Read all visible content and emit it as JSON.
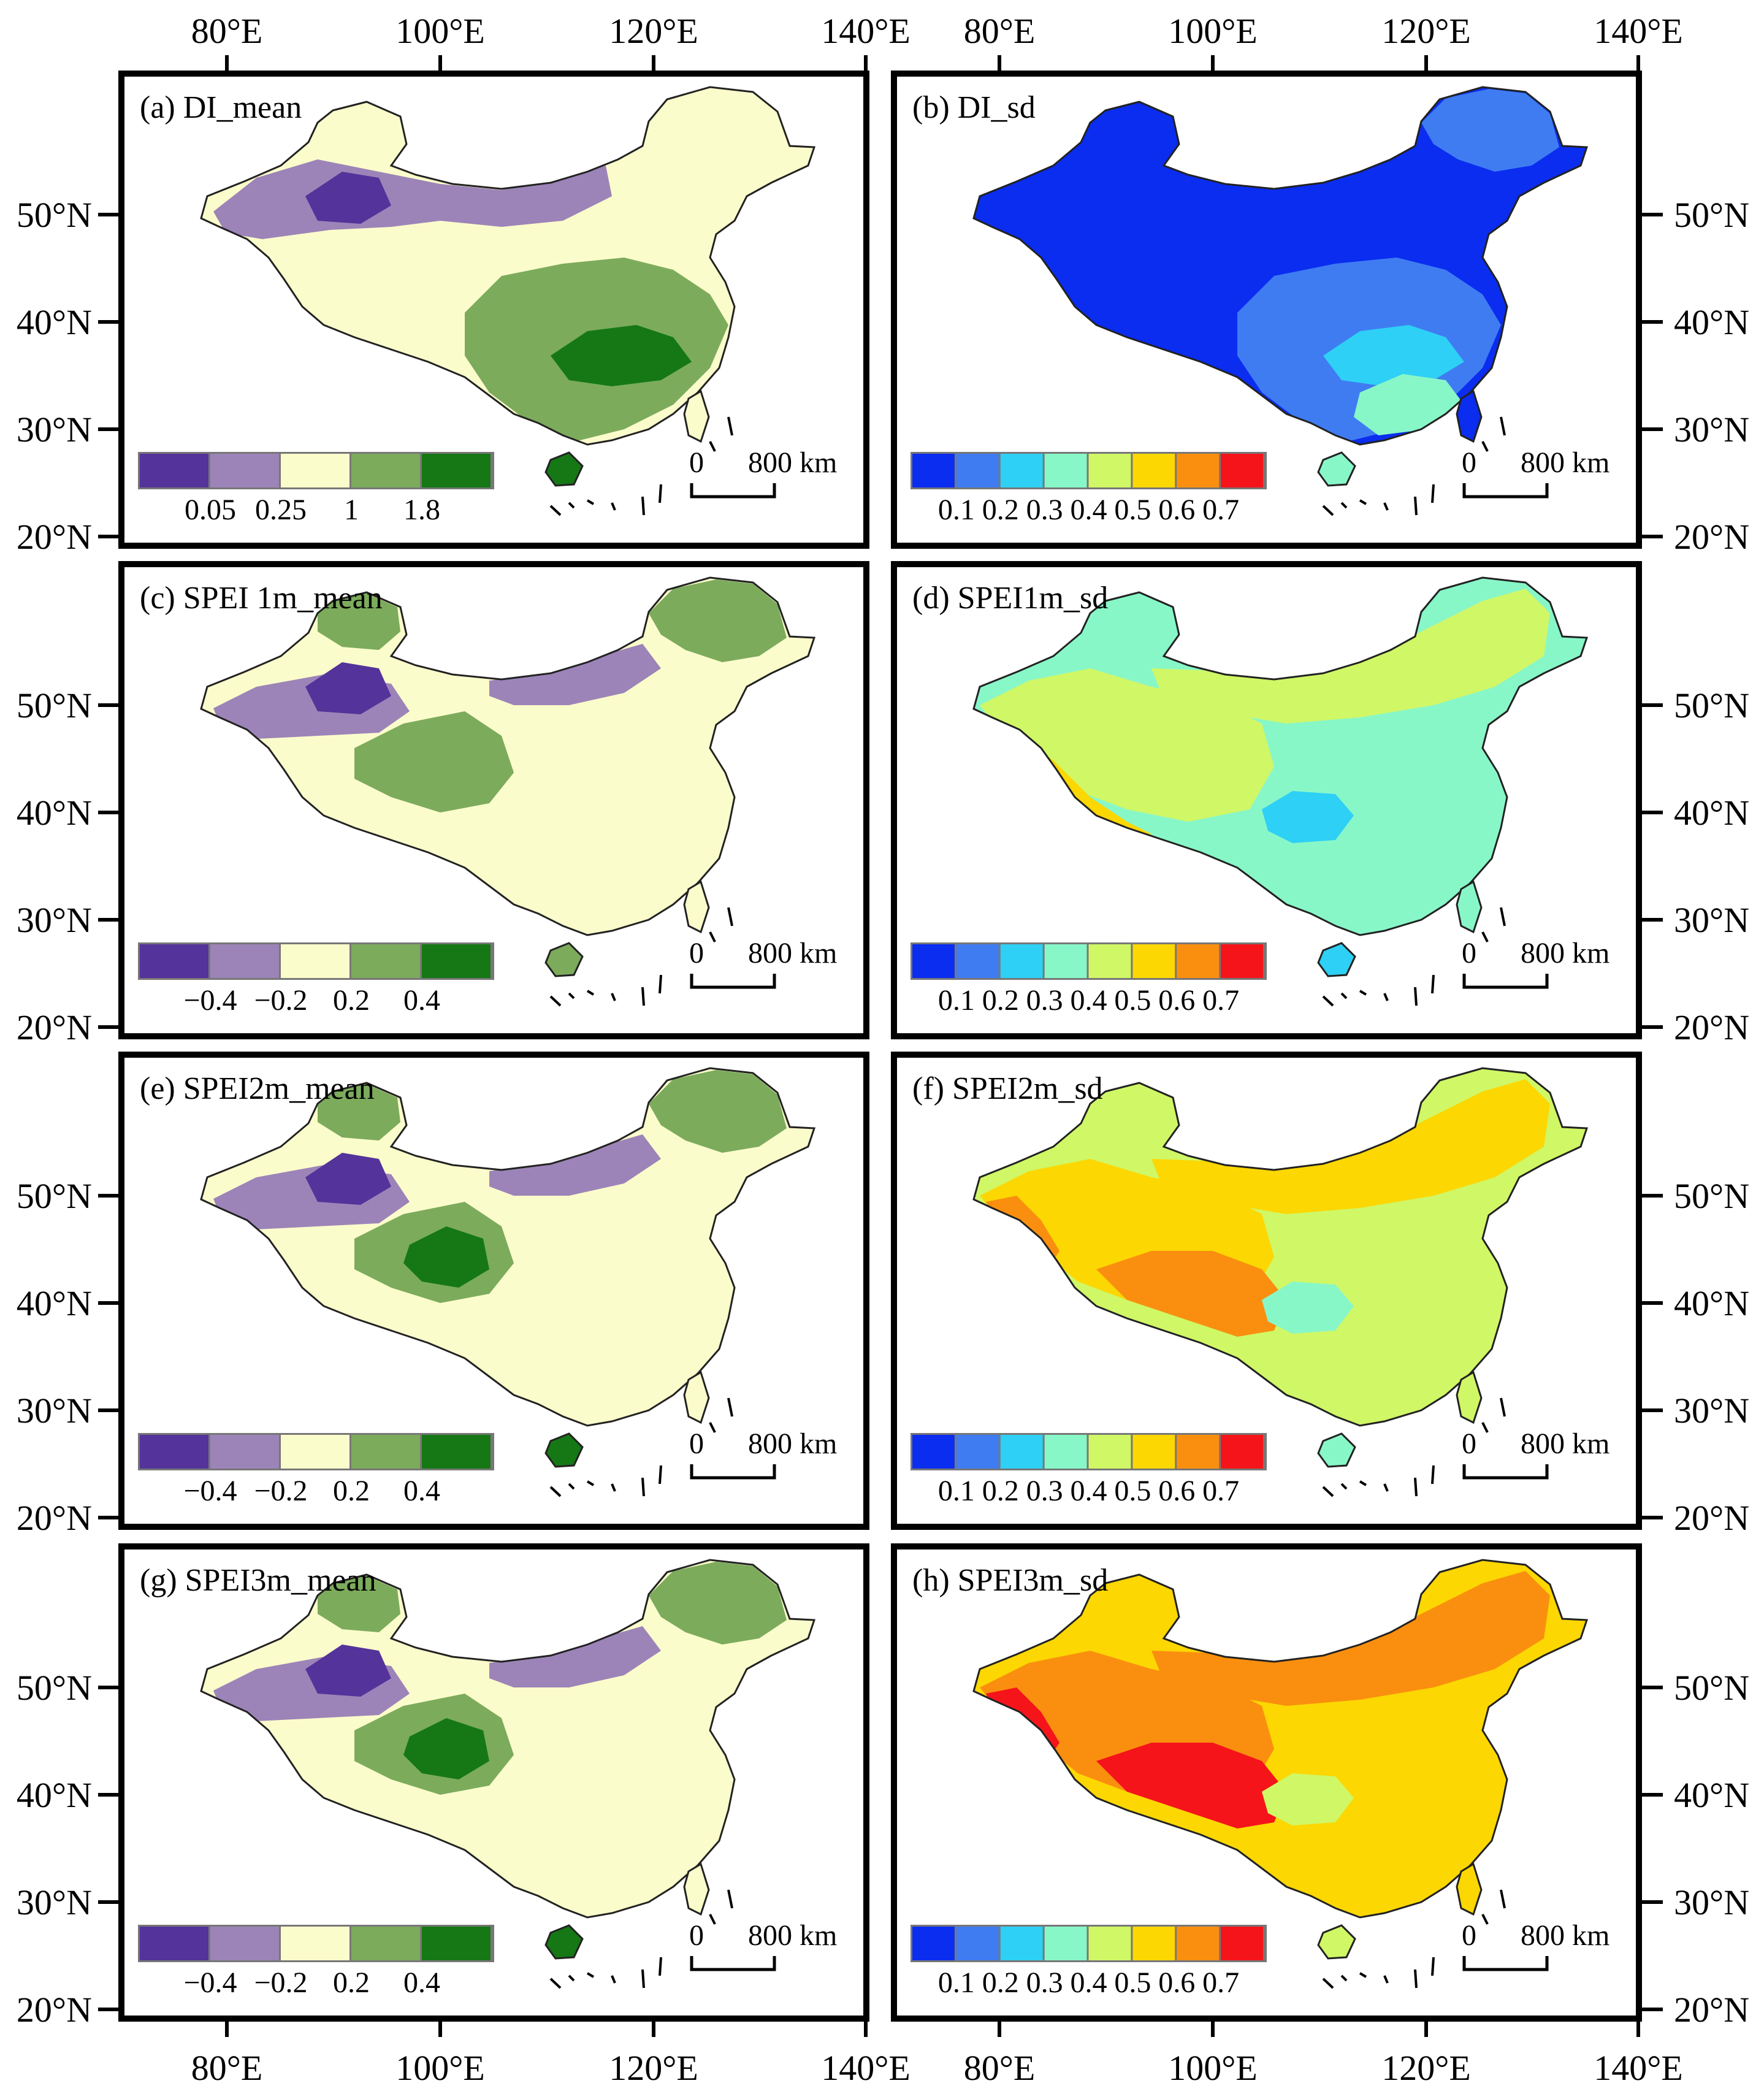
{
  "figure": {
    "top_longitudes": [
      "80°E",
      "100°E",
      "120°E",
      "140°E"
    ],
    "bottom_longitudes": [
      "80°E",
      "100°E",
      "120°E",
      "140°E"
    ],
    "latitudes": [
      "50°N",
      "40°N",
      "30°N",
      "20°N"
    ]
  },
  "scale_bar": {
    "zero": "0",
    "distance": "800 km"
  },
  "legends": {
    "di_mean": {
      "colors": [
        "#54339a",
        "#9c84b8",
        "#fbfccb",
        "#7cab5c",
        "#157815"
      ],
      "labels": [
        "0.05",
        "0.25",
        "1",
        "1.8"
      ]
    },
    "spei_mean": {
      "colors": [
        "#54339a",
        "#9c84b8",
        "#fbfccb",
        "#7cab5c",
        "#157815"
      ],
      "labels": [
        "−0.4",
        "−0.2",
        "0.2",
        "0.4"
      ]
    },
    "sd": {
      "colors": [
        "#0a2df0",
        "#3f7cf2",
        "#2ed0f5",
        "#88f7c8",
        "#d0f766",
        "#fcd702",
        "#fa8f0f",
        "#f5141a"
      ],
      "labels": [
        "0.1",
        "0.2",
        "0.3",
        "0.4",
        "0.5",
        "0.6",
        "0.7"
      ]
    }
  },
  "panels": [
    {
      "id": "a",
      "title": "(a) DI_mean",
      "legend": "di_mean",
      "base_color": "#fbfccb",
      "zones": [
        {
          "color": "#9c84b8",
          "region": "northwest drylands"
        },
        {
          "color": "#54339a",
          "region": "Tarim basin core"
        },
        {
          "color": "#7cab5c",
          "region": "south-east"
        },
        {
          "color": "#157815",
          "region": "south-east core"
        }
      ]
    },
    {
      "id": "b",
      "title": "(b) DI_sd",
      "legend": "sd",
      "base_color": "#0a2df0",
      "zones": [
        {
          "color": "#3f7cf2",
          "region": "north-east"
        },
        {
          "color": "#3f7cf2",
          "region": "south-east"
        },
        {
          "color": "#2ed0f5",
          "region": "south-east core"
        },
        {
          "color": "#88f7c8",
          "region": "south coast"
        }
      ]
    },
    {
      "id": "c",
      "title": "(c) SPEI 1m_mean",
      "legend": "spei_mean",
      "base_color": "#fbfccb",
      "zones": [
        {
          "color": "#7cab5c",
          "region": "north-east"
        },
        {
          "color": "#7cab5c",
          "region": "Altai"
        },
        {
          "color": "#9c84b8",
          "region": "Tarim basin"
        },
        {
          "color": "#54339a",
          "region": "Tarim basin core"
        },
        {
          "color": "#9c84b8",
          "region": "Inner Mongolia"
        },
        {
          "color": "#7cab5c",
          "region": "Qinghai"
        }
      ]
    },
    {
      "id": "d",
      "title": "(d) SPEI1m_sd",
      "legend": "sd",
      "base_color": "#88f7c8",
      "zones": [
        {
          "color": "#d0f766",
          "region": "west"
        },
        {
          "color": "#d0f766",
          "region": "north"
        },
        {
          "color": "#fcd702",
          "region": "south-west"
        },
        {
          "color": "#2ed0f5",
          "region": "Sichuan"
        }
      ]
    },
    {
      "id": "e",
      "title": "(e) SPEI2m_mean",
      "legend": "spei_mean",
      "base_color": "#fbfccb",
      "zones": [
        {
          "color": "#7cab5c",
          "region": "north-east"
        },
        {
          "color": "#7cab5c",
          "region": "Altai"
        },
        {
          "color": "#9c84b8",
          "region": "Tarim basin"
        },
        {
          "color": "#54339a",
          "region": "Tarim basin core"
        },
        {
          "color": "#9c84b8",
          "region": "Inner Mongolia"
        },
        {
          "color": "#7cab5c",
          "region": "Qinghai"
        },
        {
          "color": "#157815",
          "region": "Qinghai core"
        }
      ]
    },
    {
      "id": "f",
      "title": "(f) SPEI2m_sd",
      "legend": "sd",
      "base_color": "#d0f766",
      "zones": [
        {
          "color": "#fcd702",
          "region": "west"
        },
        {
          "color": "#fa8f0f",
          "region": "Kashgar"
        },
        {
          "color": "#fa8f0f",
          "region": "Tibet"
        },
        {
          "color": "#fcd702",
          "region": "north"
        },
        {
          "color": "#88f7c8",
          "region": "Sichuan"
        }
      ]
    },
    {
      "id": "g",
      "title": "(g) SPEI3m_mean",
      "legend": "spei_mean",
      "base_color": "#fbfccb",
      "zones": [
        {
          "color": "#7cab5c",
          "region": "north-east"
        },
        {
          "color": "#7cab5c",
          "region": "Altai"
        },
        {
          "color": "#9c84b8",
          "region": "Tarim basin"
        },
        {
          "color": "#54339a",
          "region": "Tarim basin core"
        },
        {
          "color": "#9c84b8",
          "region": "Inner Mongolia"
        },
        {
          "color": "#7cab5c",
          "region": "Qinghai"
        },
        {
          "color": "#157815",
          "region": "Qinghai core"
        }
      ]
    },
    {
      "id": "h",
      "title": "(h) SPEI3m_sd",
      "legend": "sd",
      "base_color": "#fcd702",
      "zones": [
        {
          "color": "#fa8f0f",
          "region": "west"
        },
        {
          "color": "#f5141a",
          "region": "Kashgar"
        },
        {
          "color": "#f5141a",
          "region": "Tibet"
        },
        {
          "color": "#fa8f0f",
          "region": "north"
        },
        {
          "color": "#d0f766",
          "region": "Sichuan"
        }
      ]
    }
  ]
}
